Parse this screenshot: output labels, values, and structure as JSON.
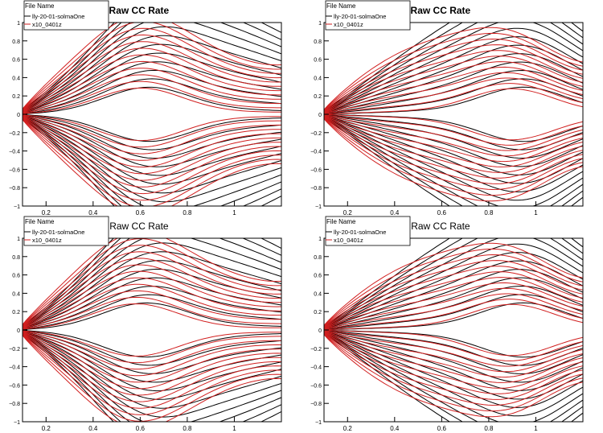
{
  "chart_data": [
    {
      "type": "line",
      "title": "Raw CC Rate",
      "legend": {
        "header": "File Name",
        "placement": "top-left",
        "entries": [
          {
            "name": "lly-20-01-solmaOne",
            "color": "#000000"
          },
          {
            "name": "x10_0401z",
            "color": "#d11f1f"
          }
        ]
      },
      "xlim": [
        0.1,
        1.2
      ],
      "ylim": [
        -1,
        1
      ],
      "xticks": [
        "0.2",
        "0.4",
        "0.6",
        "0.8",
        "1"
      ],
      "yticks": [
        "−1",
        "−0.8",
        "−0.6",
        "−0.4",
        "−0.2",
        "0",
        "0.2",
        "0.4",
        "0.6",
        "0.8",
        "1"
      ],
      "grid": false,
      "series": [
        {
          "name": "lly-20-01-solmaOne",
          "color": "#000000",
          "contour_levels": 24,
          "peak_x": 0.63,
          "spread": 1.0
        },
        {
          "name": "x10_0401z",
          "color": "#d11f1f",
          "contour_levels": 24,
          "peak_x": 0.6,
          "spread": 1.12
        }
      ]
    },
    {
      "type": "line",
      "title": "Raw CC Rate",
      "legend": {
        "header": "File Name",
        "placement": "top-left",
        "entries": [
          {
            "name": "lly-20-01-solmaOne",
            "color": "#000000"
          },
          {
            "name": "x10_0401z",
            "color": "#d11f1f"
          }
        ]
      },
      "xlim": [
        0.1,
        1.2
      ],
      "ylim": [
        -1,
        1
      ],
      "xticks": [
        "0.2",
        "0.4",
        "0.6",
        "0.8",
        "1"
      ],
      "yticks": [
        "−1",
        "−0.8",
        "−0.6",
        "−0.4",
        "−0.2",
        "0",
        "0.2",
        "0.4",
        "0.6",
        "0.8",
        "1"
      ],
      "grid": false,
      "series": [
        {
          "name": "lly-20-01-solmaOne",
          "color": "#000000",
          "contour_levels": 24,
          "peak_x": 0.95,
          "spread": 0.9
        },
        {
          "name": "x10_0401z",
          "color": "#d11f1f",
          "contour_levels": 24,
          "peak_x": 0.9,
          "spread": 1.05
        }
      ]
    },
    {
      "type": "line",
      "title": "Raw CC Rate",
      "legend": {
        "header": "File Name",
        "placement": "top-left",
        "entries": [
          {
            "name": "lly-20-01-solmaOne",
            "color": "#000000"
          },
          {
            "name": "x10_0401z",
            "color": "#d11f1f"
          }
        ]
      },
      "xlim": [
        0.1,
        1.2
      ],
      "ylim": [
        -1,
        1
      ],
      "xticks": [
        "0.2",
        "0.4",
        "0.6",
        "0.8",
        "1"
      ],
      "yticks": [
        "−1",
        "−0.8",
        "−0.6",
        "−0.4",
        "−0.2",
        "0",
        "0.2",
        "0.4",
        "0.6",
        "0.8",
        "1"
      ],
      "grid": false,
      "series": [
        {
          "name": "lly-20-01-solmaOne",
          "color": "#000000",
          "contour_levels": 24,
          "peak_x": 0.62,
          "spread": 1.0
        },
        {
          "name": "x10_0401z",
          "color": "#d11f1f",
          "contour_levels": 24,
          "peak_x": 0.58,
          "spread": 1.1
        }
      ]
    },
    {
      "type": "line",
      "title": "Raw CC Rate",
      "legend": {
        "header": "File Name",
        "placement": "top-left",
        "entries": [
          {
            "name": "lly-20-01-solmaOne",
            "color": "#000000"
          },
          {
            "name": "x10_0401z",
            "color": "#d11f1f"
          }
        ]
      },
      "xlim": [
        0.1,
        1.2
      ],
      "ylim": [
        -1,
        1
      ],
      "xticks": [
        "0.2",
        "0.4",
        "0.6",
        "0.8",
        "1"
      ],
      "yticks": [
        "−1",
        "−0.8",
        "−0.6",
        "−0.4",
        "−0.2",
        "0",
        "0.2",
        "0.4",
        "0.6",
        "0.8",
        "1"
      ],
      "grid": false,
      "series": [
        {
          "name": "lly-20-01-solmaOne",
          "color": "#000000",
          "contour_levels": 24,
          "peak_x": 0.95,
          "spread": 0.9
        },
        {
          "name": "x10_0401z",
          "color": "#d11f1f",
          "contour_levels": 24,
          "peak_x": 0.9,
          "spread": 1.05
        }
      ]
    }
  ]
}
